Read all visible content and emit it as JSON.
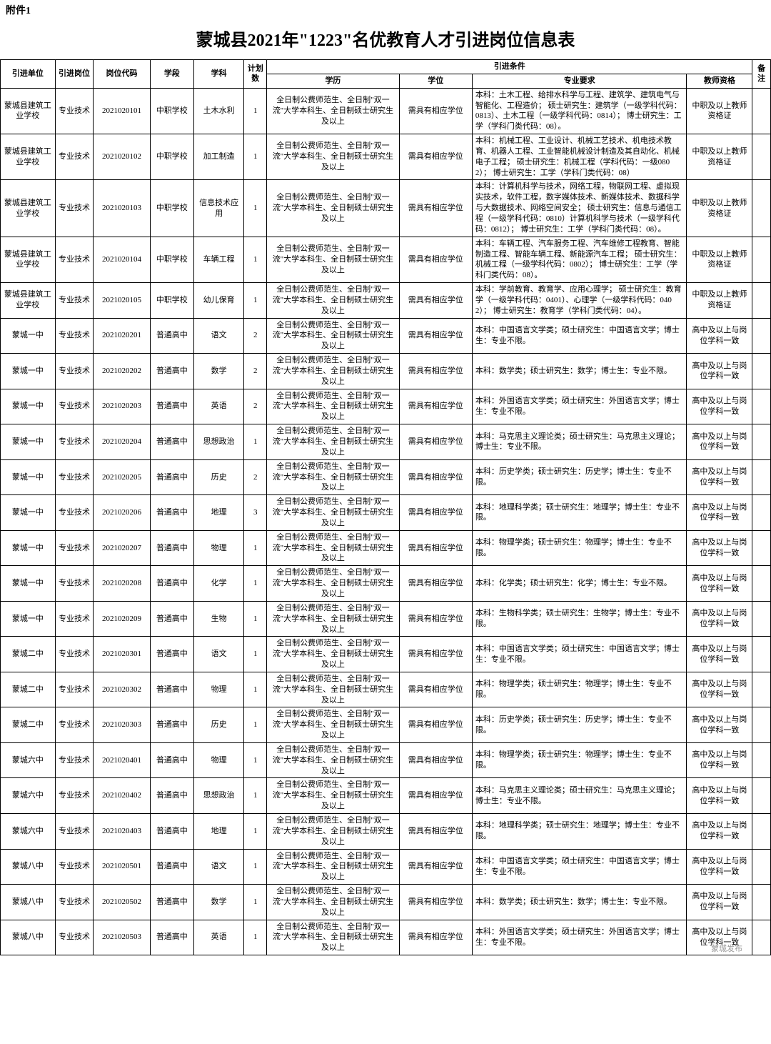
{
  "attachment_label": "附件1",
  "title": "蒙城县2021年\"1223\"名优教育人才引进岗位信息表",
  "headers": {
    "unit": "引进单位",
    "post": "引进岗位",
    "code": "岗位代码",
    "stage": "学段",
    "subject": "学科",
    "count": "计划数",
    "conditions": "引进条件",
    "edu": "学历",
    "degree": "学位",
    "major": "专业要求",
    "cert": "教师资格",
    "note": "备注"
  },
  "common": {
    "post": "专业技术",
    "edu_text": "全日制公费师范生、全日制\"双一流\"大学本科生、全日制硕士研究生及以上",
    "degree_text": "需具有相应学位",
    "cert_zhongzhi": "中职及以上教师资格证",
    "cert_gaozhong": "高中及以上与岗位学科一致"
  },
  "rows": [
    {
      "unit": "蒙城县建筑工业学校",
      "code": "2021020101",
      "stage": "中职学校",
      "subject": "土木水利",
      "count": 1,
      "major": "本科：土木工程、给排水科学与工程、建筑学、建筑电气与智能化、工程造价；\n硕士研究生：建筑学（一级学科代码：0813）、土木工程（一级学科代码：0814）；\n博士研究生：工学（学科门类代码：08）。",
      "cert": "cert_zhongzhi"
    },
    {
      "unit": "蒙城县建筑工业学校",
      "code": "2021020102",
      "stage": "中职学校",
      "subject": "加工制造",
      "count": 1,
      "major": "本科：机械工程、工业设计、机械工艺技术、机电技术教育、机器人工程、工业智能机械设计制造及其自动化、机械电子工程；\n硕士研究生：机械工程（学科代码：一级0802）；\n博士研究生：工学（学科门类代码：08）",
      "cert": "cert_zhongzhi"
    },
    {
      "unit": "蒙城县建筑工业学校",
      "code": "2021020103",
      "stage": "中职学校",
      "subject": "信息技术应用",
      "count": 1,
      "major": "本科：计算机科学与技术，网络工程，物联网工程、虚拟现实技术，软件工程，数字媒体技术、新媒体技术、数据科学与大数据技术、网络空间安全；\n硕士研究生：信息与通信工程（一级学科代码：0810）计算机科学与技术（一级学科代码：0812）；\n博士研究生：工学（学科门类代码：08）。",
      "cert": "cert_zhongzhi"
    },
    {
      "unit": "蒙城县建筑工业学校",
      "code": "2021020104",
      "stage": "中职学校",
      "subject": "车辆工程",
      "count": 1,
      "major": "本科：车辆工程、汽车服务工程、汽车维修工程教育、智能制造工程、智能车辆工程、新能源汽车工程；\n硕士研究生：机械工程（一级学科代码：0802）；\n博士研究生：工学（学科门类代码：08）。",
      "cert": "cert_zhongzhi"
    },
    {
      "unit": "蒙城县建筑工业学校",
      "code": "2021020105",
      "stage": "中职学校",
      "subject": "幼儿保育",
      "count": 1,
      "major": "本科：学前教育、教育学、应用心理学；\n硕士研究生：教育学（一级学科代码：0401）、心理学（一级学科代码：0402）；\n博士研究生：教育学（学科门类代码：04）。",
      "cert": "cert_zhongzhi"
    },
    {
      "unit": "蒙城一中",
      "code": "2021020201",
      "stage": "普通高中",
      "subject": "语文",
      "count": 2,
      "major": "本科：中国语言文学类；硕士研究生：中国语言文学；博士生：专业不限。",
      "cert": "cert_gaozhong"
    },
    {
      "unit": "蒙城一中",
      "code": "2021020202",
      "stage": "普通高中",
      "subject": "数学",
      "count": 2,
      "major": "本科：数学类；硕士研究生：数学；博士生：专业不限。",
      "cert": "cert_gaozhong"
    },
    {
      "unit": "蒙城一中",
      "code": "2021020203",
      "stage": "普通高中",
      "subject": "英语",
      "count": 2,
      "major": "本科：外国语言文学类；硕士研究生：外国语言文学；博士生：专业不限。",
      "cert": "cert_gaozhong"
    },
    {
      "unit": "蒙城一中",
      "code": "2021020204",
      "stage": "普通高中",
      "subject": "思想政治",
      "count": 1,
      "major": "本科：马克思主义理论类；硕士研究生：马克思主义理论；博士生：专业不限。",
      "cert": "cert_gaozhong"
    },
    {
      "unit": "蒙城一中",
      "code": "2021020205",
      "stage": "普通高中",
      "subject": "历史",
      "count": 2,
      "major": "本科：历史学类；硕士研究生：历史学；博士生：专业不限。",
      "cert": "cert_gaozhong"
    },
    {
      "unit": "蒙城一中",
      "code": "2021020206",
      "stage": "普通高中",
      "subject": "地理",
      "count": 3,
      "major": "本科：地理科学类；硕士研究生：地理学；博士生：专业不限。",
      "cert": "cert_gaozhong"
    },
    {
      "unit": "蒙城一中",
      "code": "2021020207",
      "stage": "普通高中",
      "subject": "物理",
      "count": 1,
      "major": "本科：物理学类；硕士研究生：物理学；博士生：专业不限。",
      "cert": "cert_gaozhong"
    },
    {
      "unit": "蒙城一中",
      "code": "2021020208",
      "stage": "普通高中",
      "subject": "化学",
      "count": 1,
      "major": "本科：化学类；硕士研究生：化学；博士生：专业不限。",
      "cert": "cert_gaozhong"
    },
    {
      "unit": "蒙城一中",
      "code": "2021020209",
      "stage": "普通高中",
      "subject": "生物",
      "count": 1,
      "major": "本科：生物科学类；硕士研究生：生物学；博士生：专业不限。",
      "cert": "cert_gaozhong"
    },
    {
      "unit": "蒙城二中",
      "code": "2021020301",
      "stage": "普通高中",
      "subject": "语文",
      "count": 1,
      "major": "本科：中国语言文学类；硕士研究生：中国语言文学；博士生：专业不限。",
      "cert": "cert_gaozhong"
    },
    {
      "unit": "蒙城二中",
      "code": "2021020302",
      "stage": "普通高中",
      "subject": "物理",
      "count": 1,
      "major": "本科：物理学类；硕士研究生：物理学；博士生：专业不限。",
      "cert": "cert_gaozhong"
    },
    {
      "unit": "蒙城二中",
      "code": "2021020303",
      "stage": "普通高中",
      "subject": "历史",
      "count": 1,
      "major": "本科：历史学类；硕士研究生：历史学；博士生：专业不限。",
      "cert": "cert_gaozhong"
    },
    {
      "unit": "蒙城六中",
      "code": "2021020401",
      "stage": "普通高中",
      "subject": "物理",
      "count": 1,
      "major": "本科：物理学类；硕士研究生：物理学；博士生：专业不限。",
      "cert": "cert_gaozhong"
    },
    {
      "unit": "蒙城六中",
      "code": "2021020402",
      "stage": "普通高中",
      "subject": "思想政治",
      "count": 1,
      "major": "本科：马克思主义理论类；硕士研究生：马克思主义理论；博士生：专业不限。",
      "cert": "cert_gaozhong"
    },
    {
      "unit": "蒙城六中",
      "code": "2021020403",
      "stage": "普通高中",
      "subject": "地理",
      "count": 1,
      "major": "本科：地理科学类；硕士研究生：地理学；博士生：专业不限。",
      "cert": "cert_gaozhong"
    },
    {
      "unit": "蒙城八中",
      "code": "2021020501",
      "stage": "普通高中",
      "subject": "语文",
      "count": 1,
      "major": "本科：中国语言文学类；硕士研究生：中国语言文学；博士生：专业不限。",
      "cert": "cert_gaozhong"
    },
    {
      "unit": "蒙城八中",
      "code": "2021020502",
      "stage": "普通高中",
      "subject": "数学",
      "count": 1,
      "major": "本科：数学类；硕士研究生：数学；博士生：专业不限。",
      "cert": "cert_gaozhong"
    },
    {
      "unit": "蒙城八中",
      "code": "2021020503",
      "stage": "普通高中",
      "subject": "英语",
      "count": 1,
      "major": "本科：外国语言文学类；硕士研究生：外国语言文学；博士生：专业不限。",
      "cert": "cert_gaozhong"
    }
  ],
  "watermark": "蒙城发布"
}
